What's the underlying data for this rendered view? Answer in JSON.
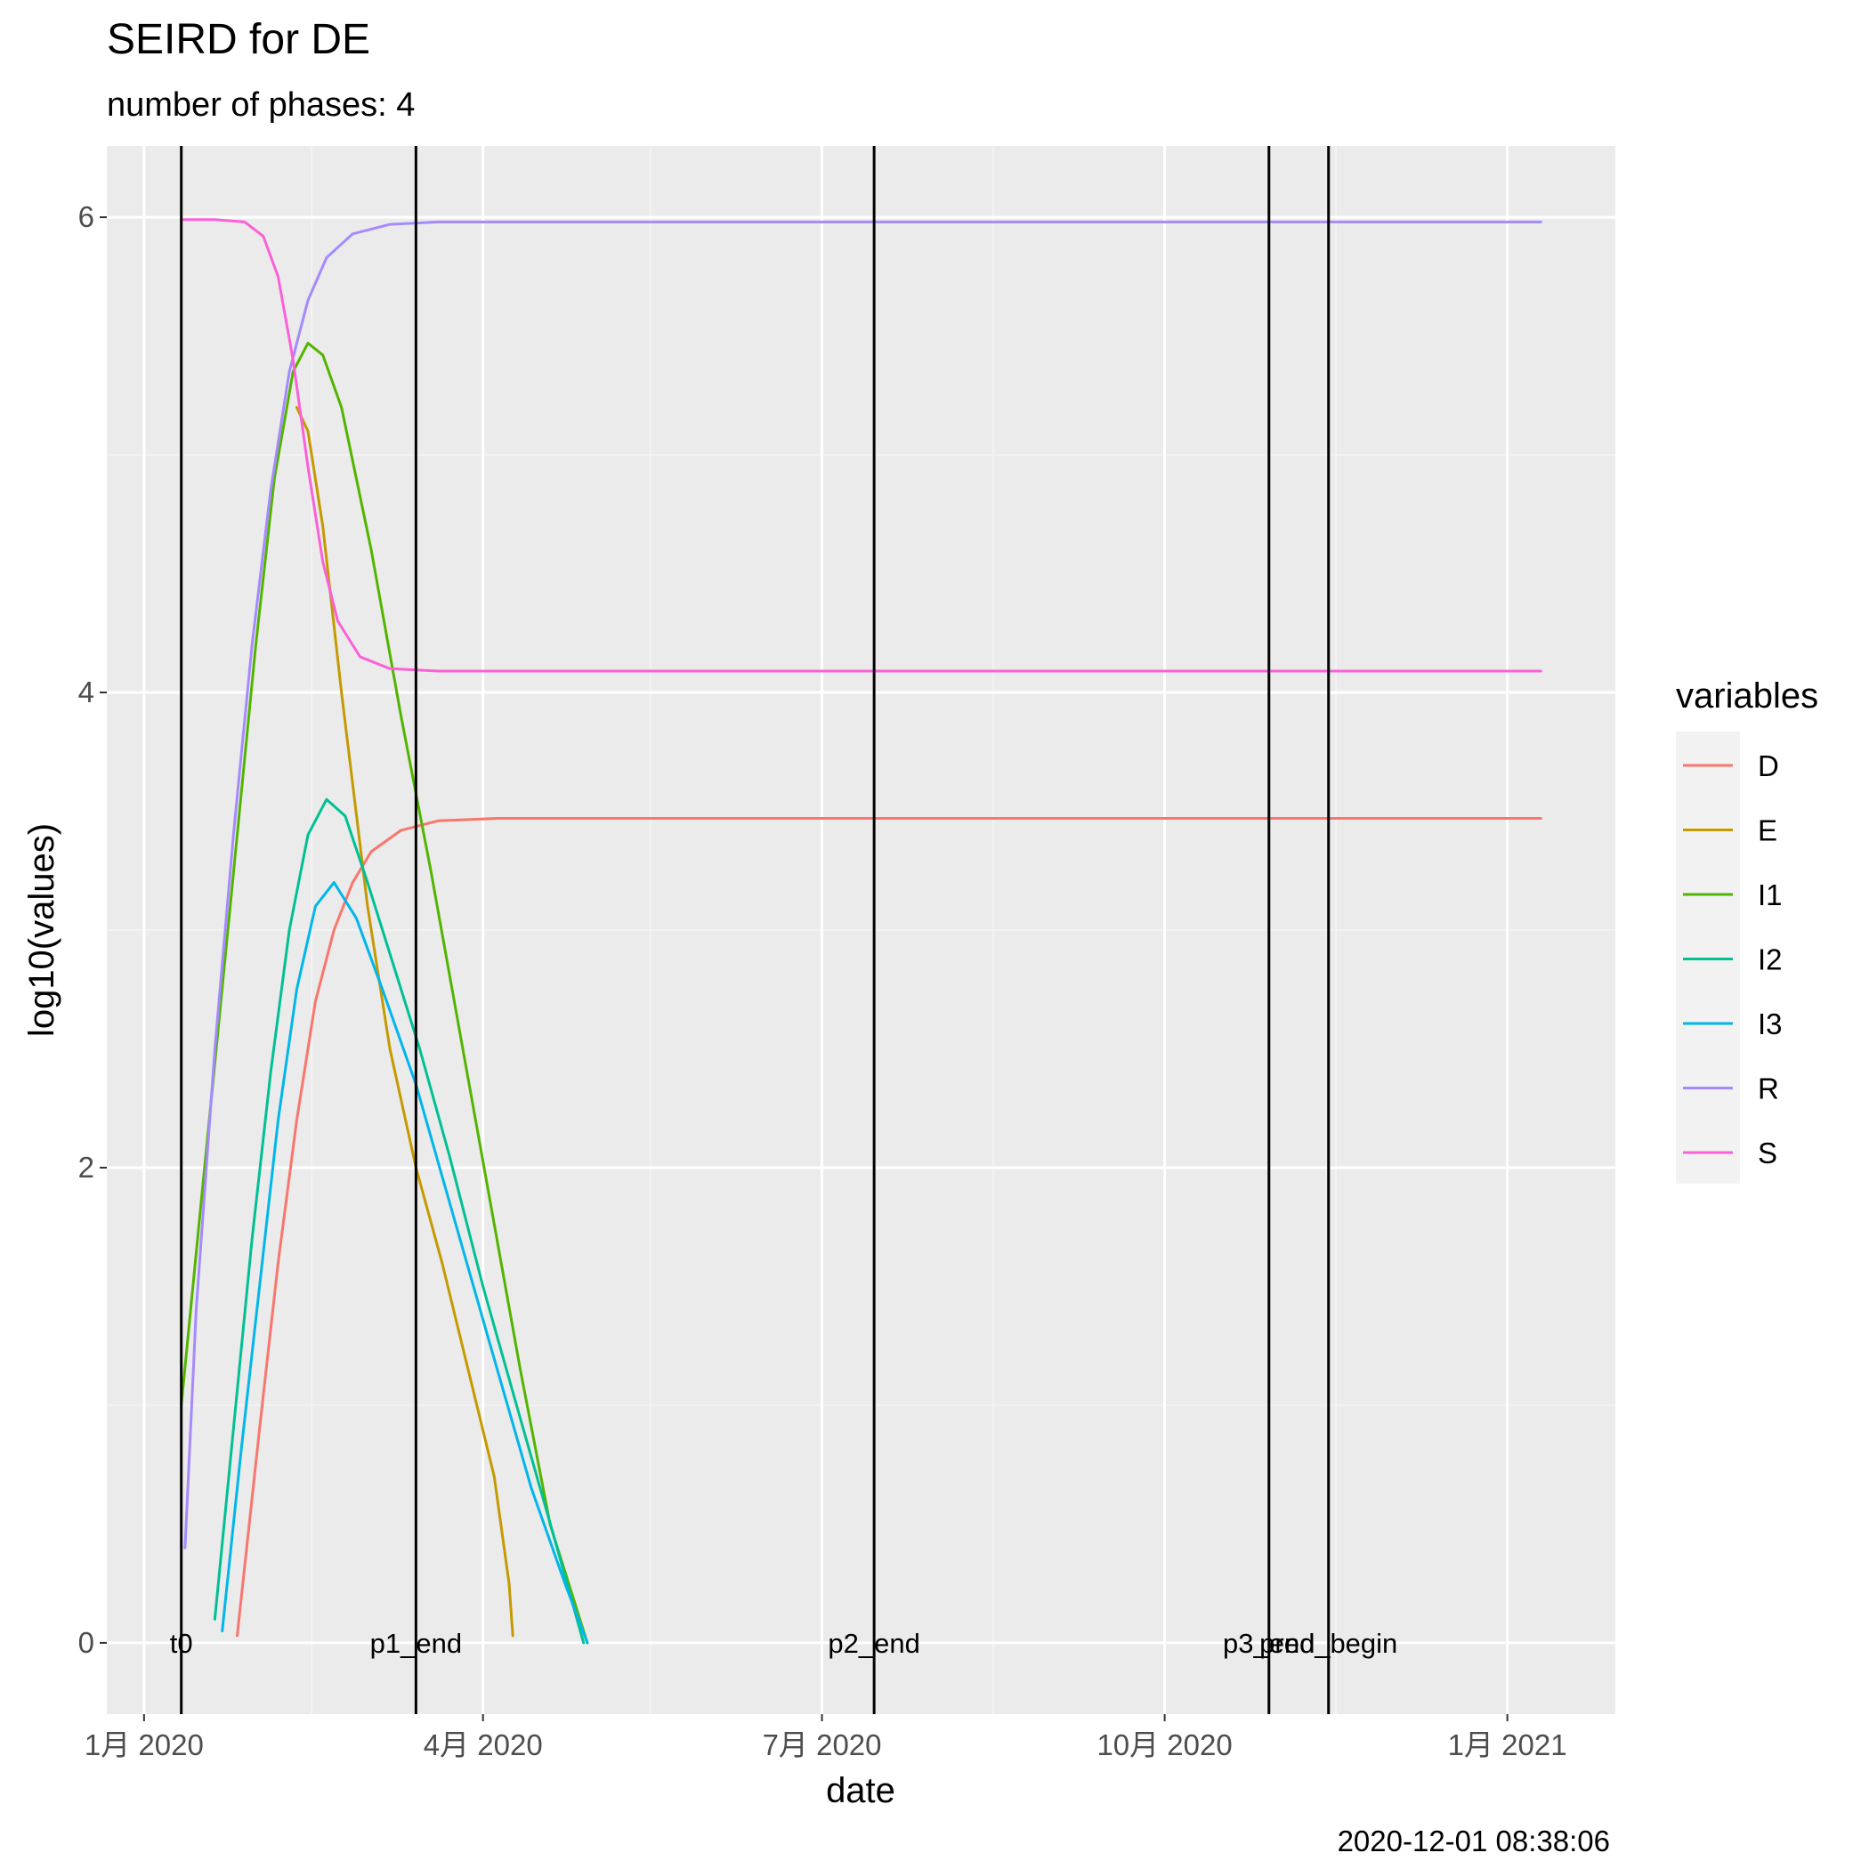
{
  "chart_data": {
    "type": "line",
    "title": "SEIRD for DE",
    "subtitle": "number of phases: 4",
    "xlabel": "date",
    "ylabel": "log10(values)",
    "caption": "2020-12-01 08:38:06",
    "x_scale": "date",
    "xlim": [
      "2019-12-22",
      "2021-01-30"
    ],
    "ylim": [
      -0.3,
      6.3
    ],
    "grid": true,
    "x_ticks": [
      {
        "date": "2020-01-01",
        "label": "1月 2020"
      },
      {
        "date": "2020-04-01",
        "label": "4月 2020"
      },
      {
        "date": "2020-07-01",
        "label": "7月 2020"
      },
      {
        "date": "2020-10-01",
        "label": "10月 2020"
      },
      {
        "date": "2021-01-01",
        "label": "1月 2021"
      }
    ],
    "x_minor_ticks": [
      "2020-02-15",
      "2020-05-16",
      "2020-08-16",
      "2020-11-16"
    ],
    "y_ticks": [
      0,
      2,
      4,
      6
    ],
    "y_minor_ticks": [
      1,
      3,
      5
    ],
    "legend": {
      "title": "variables",
      "position": "right"
    },
    "vlines": [
      {
        "date": "2020-01-11",
        "label": "t0"
      },
      {
        "date": "2020-03-14",
        "label": "p1_end"
      },
      {
        "date": "2020-07-15",
        "label": "p2_end"
      },
      {
        "date": "2020-10-29",
        "label": "p3_end"
      },
      {
        "date": "2020-11-14",
        "label": "pred_begin"
      }
    ],
    "series": [
      {
        "name": "D",
        "color": "#F8766D",
        "points": [
          [
            "2020-01-26",
            0.03
          ],
          [
            "2020-02-01",
            0.9
          ],
          [
            "2020-02-06",
            1.6
          ],
          [
            "2020-02-11",
            2.2
          ],
          [
            "2020-02-16",
            2.7
          ],
          [
            "2020-02-21",
            3.0
          ],
          [
            "2020-02-26",
            3.2
          ],
          [
            "2020-03-02",
            3.33
          ],
          [
            "2020-03-10",
            3.42
          ],
          [
            "2020-03-20",
            3.46
          ],
          [
            "2020-04-05",
            3.47
          ],
          [
            "2020-06-01",
            3.47
          ],
          [
            "2020-09-01",
            3.47
          ],
          [
            "2021-01-10",
            3.47
          ]
        ]
      },
      {
        "name": "E",
        "color": "#C49A00",
        "points": [
          [
            "2020-02-11",
            5.2
          ],
          [
            "2020-02-14",
            5.1
          ],
          [
            "2020-02-18",
            4.7
          ],
          [
            "2020-02-23",
            4.0
          ],
          [
            "2020-03-01",
            3.1
          ],
          [
            "2020-03-07",
            2.5
          ],
          [
            "2020-03-14",
            2.0
          ],
          [
            "2020-03-21",
            1.6
          ],
          [
            "2020-03-28",
            1.15
          ],
          [
            "2020-04-04",
            0.7
          ],
          [
            "2020-04-08",
            0.25
          ],
          [
            "2020-04-09",
            0.03
          ]
        ]
      },
      {
        "name": "I1",
        "color": "#53B400",
        "points": [
          [
            "2020-01-11",
            1.0
          ],
          [
            "2020-01-16",
            1.8
          ],
          [
            "2020-01-21",
            2.6
          ],
          [
            "2020-01-26",
            3.4
          ],
          [
            "2020-01-31",
            4.2
          ],
          [
            "2020-02-05",
            4.9
          ],
          [
            "2020-02-10",
            5.35
          ],
          [
            "2020-02-14",
            5.47
          ],
          [
            "2020-02-18",
            5.42
          ],
          [
            "2020-02-23",
            5.2
          ],
          [
            "2020-03-02",
            4.6
          ],
          [
            "2020-03-10",
            3.9
          ],
          [
            "2020-03-18",
            3.25
          ],
          [
            "2020-03-26",
            2.55
          ],
          [
            "2020-04-03",
            1.85
          ],
          [
            "2020-04-11",
            1.15
          ],
          [
            "2020-04-19",
            0.5
          ],
          [
            "2020-04-29",
            0.0
          ]
        ]
      },
      {
        "name": "I2",
        "color": "#00C094",
        "points": [
          [
            "2020-01-20",
            0.1
          ],
          [
            "2020-01-25",
            0.9
          ],
          [
            "2020-01-30",
            1.7
          ],
          [
            "2020-02-04",
            2.4
          ],
          [
            "2020-02-09",
            3.0
          ],
          [
            "2020-02-14",
            3.4
          ],
          [
            "2020-02-19",
            3.55
          ],
          [
            "2020-02-24",
            3.48
          ],
          [
            "2020-03-01",
            3.2
          ],
          [
            "2020-03-08",
            2.85
          ],
          [
            "2020-03-15",
            2.5
          ],
          [
            "2020-03-23",
            2.05
          ],
          [
            "2020-04-01",
            1.5
          ],
          [
            "2020-04-10",
            1.0
          ],
          [
            "2020-04-20",
            0.45
          ],
          [
            "2020-04-28",
            0.0
          ]
        ]
      },
      {
        "name": "I3",
        "color": "#00B6EB",
        "points": [
          [
            "2020-01-22",
            0.05
          ],
          [
            "2020-01-27",
            0.8
          ],
          [
            "2020-02-01",
            1.5
          ],
          [
            "2020-02-06",
            2.2
          ],
          [
            "2020-02-11",
            2.75
          ],
          [
            "2020-02-16",
            3.1
          ],
          [
            "2020-02-21",
            3.2
          ],
          [
            "2020-02-27",
            3.05
          ],
          [
            "2020-03-05",
            2.75
          ],
          [
            "2020-03-14",
            2.35
          ],
          [
            "2020-03-24",
            1.8
          ],
          [
            "2020-04-03",
            1.25
          ],
          [
            "2020-04-14",
            0.65
          ],
          [
            "2020-04-23",
            0.25
          ],
          [
            "2020-04-29",
            0.0
          ]
        ]
      },
      {
        "name": "R",
        "color": "#A58AFF",
        "points": [
          [
            "2020-01-12",
            0.4
          ],
          [
            "2020-01-15",
            1.4
          ],
          [
            "2020-01-20",
            2.5
          ],
          [
            "2020-01-25",
            3.4
          ],
          [
            "2020-01-30",
            4.2
          ],
          [
            "2020-02-04",
            4.85
          ],
          [
            "2020-02-09",
            5.35
          ],
          [
            "2020-02-14",
            5.65
          ],
          [
            "2020-02-19",
            5.83
          ],
          [
            "2020-02-26",
            5.93
          ],
          [
            "2020-03-07",
            5.97
          ],
          [
            "2020-03-20",
            5.98
          ],
          [
            "2020-06-01",
            5.98
          ],
          [
            "2021-01-10",
            5.98
          ]
        ]
      },
      {
        "name": "S",
        "color": "#FB61D7",
        "points": [
          [
            "2020-01-11",
            5.99
          ],
          [
            "2020-01-20",
            5.99
          ],
          [
            "2020-01-28",
            5.98
          ],
          [
            "2020-02-02",
            5.92
          ],
          [
            "2020-02-06",
            5.75
          ],
          [
            "2020-02-10",
            5.4
          ],
          [
            "2020-02-14",
            4.95
          ],
          [
            "2020-02-18",
            4.55
          ],
          [
            "2020-02-22",
            4.3
          ],
          [
            "2020-02-28",
            4.15
          ],
          [
            "2020-03-07",
            4.1
          ],
          [
            "2020-03-20",
            4.09
          ],
          [
            "2020-06-01",
            4.09
          ],
          [
            "2021-01-10",
            4.09
          ]
        ]
      }
    ]
  }
}
